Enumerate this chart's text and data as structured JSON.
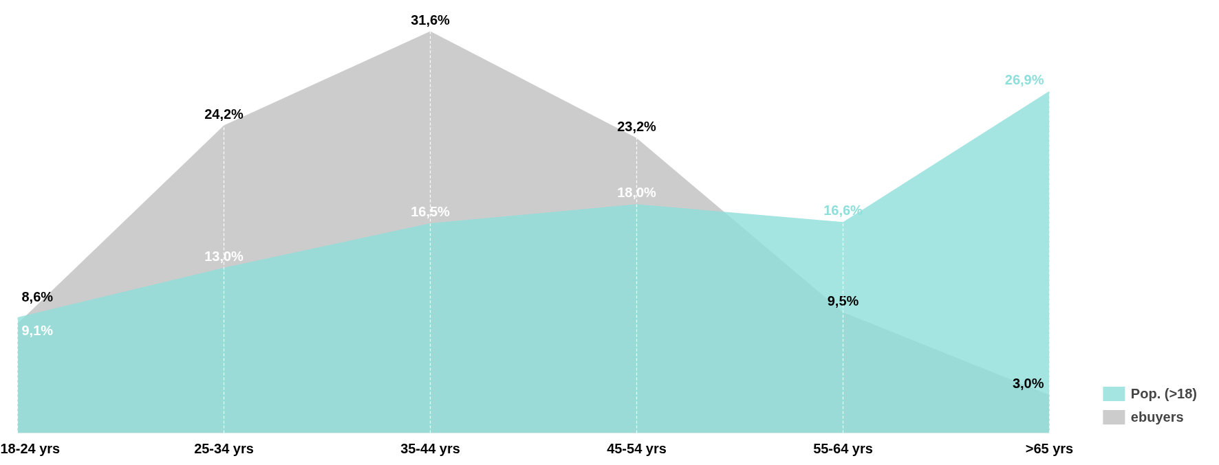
{
  "chart_data": {
    "type": "area",
    "categories": [
      "18-24 yrs",
      "25-34 yrs",
      "35-44 yrs",
      "45-54 yrs",
      "55-64 yrs",
      ">65 yrs"
    ],
    "series": [
      {
        "name": "Pop. (>18)",
        "color": "#8ddfda",
        "values": [
          9.1,
          13.0,
          16.5,
          18.0,
          16.6,
          26.9
        ],
        "value_labels": [
          "9,1%",
          "13,0%",
          "16,5%",
          "18,0%",
          "16,6%",
          "26,9%"
        ]
      },
      {
        "name": "ebuyers",
        "color": "#cccccc",
        "values": [
          8.6,
          24.2,
          31.6,
          23.2,
          9.5,
          3.0
        ],
        "value_labels": [
          "8,6%",
          "24,2%",
          "31,6%",
          "23,2%",
          "9,5%",
          "3,0%"
        ]
      }
    ],
    "grid": "x",
    "legend": "bottom right"
  }
}
